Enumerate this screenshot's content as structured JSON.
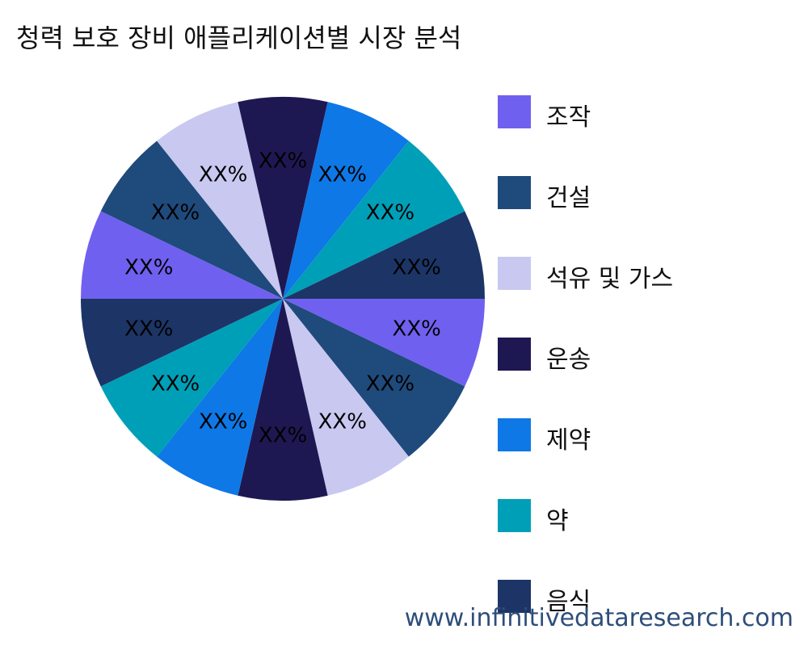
{
  "chart_data": {
    "type": "pie",
    "title": "청력 보호 장비 애플리케이션별 시장 분석",
    "slices": [
      {
        "name": "조작",
        "value": 10,
        "label": "XX%",
        "color": "#7060F0"
      },
      {
        "name": "건설",
        "value": 10,
        "label": "XX%",
        "color": "#1F4A7C"
      },
      {
        "name": "석유 및 가스",
        "value": 10,
        "label": "XX%",
        "color": "#C8C8F0"
      },
      {
        "name": "운송",
        "value": 10,
        "label": "XX%",
        "color": "#1E1852"
      },
      {
        "name": "제약",
        "value": 10,
        "label": "XX%",
        "color": "#0E78E6"
      },
      {
        "name": "약",
        "value": 10,
        "label": "XX%",
        "color": "#009FB8"
      },
      {
        "name": "음식",
        "value": 10,
        "label": "XX%",
        "color": "#1C3566"
      }
    ],
    "legend_position": "right"
  },
  "watermark": "www.infinitivedataresearch.com"
}
